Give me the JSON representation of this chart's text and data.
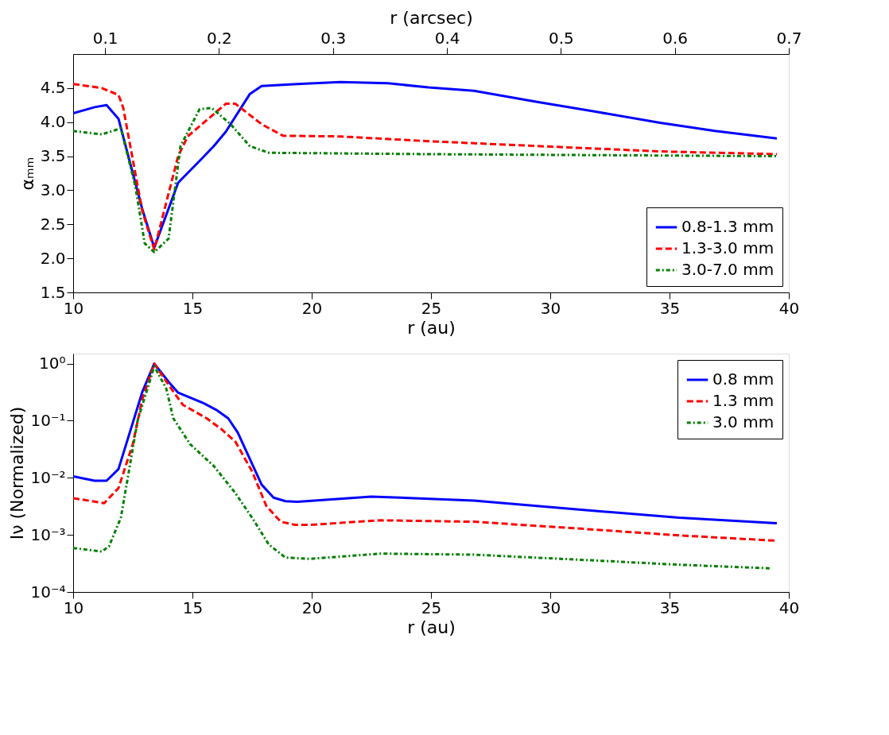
{
  "chart_data": [
    {
      "type": "line",
      "xlabel": "r (au)",
      "ylabel": "αₘₘ",
      "x2label": "r (arcsec)",
      "xlim": [
        10,
        40
      ],
      "xticks": [
        10,
        15,
        20,
        25,
        30,
        35,
        40
      ],
      "ylim": [
        1.5,
        5.0
      ],
      "yticks": [
        1.5,
        {
          "value": 2,
          "label": "2.0"
        },
        2.5,
        {
          "value": 3,
          "label": "3.0"
        },
        3.5,
        {
          "value": 4,
          "label": "4.0"
        },
        4.5
      ],
      "x2lim": [
        0.072,
        0.7
      ],
      "x2ticks": [
        0.1,
        0.2,
        0.3,
        0.4,
        0.5,
        0.6,
        0.7
      ],
      "grid": false,
      "legend": "bottom right",
      "marker": "none",
      "series": [
        {
          "name": "0.8-1.3 mm",
          "color": "#0000ff",
          "line_style": "solid",
          "x": [
            10,
            10.9,
            11.4,
            11.9,
            12.9,
            13.4,
            14.4,
            15.3,
            15.9,
            16.4,
            17.4,
            17.9,
            19.4,
            21.2,
            23.2,
            24.9,
            26.8,
            29.4,
            31.8,
            34.6,
            36.9,
            39.5
          ],
          "values": [
            4.13,
            4.22,
            4.25,
            4.05,
            2.72,
            2.16,
            3.11,
            3.43,
            3.65,
            3.86,
            4.41,
            4.53,
            4.56,
            4.59,
            4.57,
            4.51,
            4.46,
            4.3,
            4.16,
            3.99,
            3.87,
            3.76
          ]
        },
        {
          "name": "1.3-3.0 mm",
          "color": "#ff0000",
          "line_style": "dashed",
          "x": [
            10,
            11.2,
            11.9,
            12.1,
            12.9,
            13.4,
            14.4,
            14.8,
            15.6,
            16.4,
            16.8,
            17.9,
            18.8,
            21.2,
            24.9,
            29.4,
            34.6,
            39.5
          ],
          "values": [
            4.56,
            4.5,
            4.4,
            4.21,
            2.69,
            2.13,
            3.5,
            3.79,
            4.03,
            4.27,
            4.27,
            3.97,
            3.8,
            3.79,
            3.72,
            3.65,
            3.57,
            3.53
          ]
        },
        {
          "name": "3.0-7.0 mm",
          "color": "#008000",
          "line_style": "dotted",
          "x": [
            10,
            11.2,
            12.0,
            12.6,
            13.0,
            13.4,
            14.0,
            14.5,
            15.3,
            15.8,
            16.6,
            17.4,
            18.2,
            24.9,
            39.5
          ],
          "values": [
            3.87,
            3.82,
            3.91,
            3.07,
            2.22,
            2.09,
            2.29,
            3.65,
            4.19,
            4.21,
            3.97,
            3.65,
            3.55,
            3.53,
            3.5
          ]
        }
      ]
    },
    {
      "type": "line",
      "xlabel": "r (au)",
      "ylabel": "Iν (Normalized)",
      "xlim": [
        10,
        40
      ],
      "xticks": [
        10,
        15,
        20,
        25,
        30,
        35,
        40
      ],
      "ylim": [
        0.0001,
        1.5
      ],
      "log": "y",
      "yticks": [
        {
          "value": 0.0001,
          "label": "10⁻⁴"
        },
        {
          "value": 0.001,
          "label": "10⁻³"
        },
        {
          "value": 0.01,
          "label": "10⁻²"
        },
        {
          "value": 0.1,
          "label": "10⁻¹"
        },
        {
          "value": 1,
          "label": "10⁰"
        }
      ],
      "grid": false,
      "legend": "top right",
      "marker": "none",
      "series": [
        {
          "name": "0.8 mm",
          "color": "#0000ff",
          "line_style": "solid",
          "x": [
            10,
            10.9,
            11.4,
            11.9,
            12.9,
            13.4,
            14.0,
            14.4,
            15.5,
            16.0,
            16.5,
            16.9,
            17.9,
            18.4,
            18.9,
            19.4,
            22.5,
            26.8,
            31.1,
            35.4,
            39.5
          ],
          "values": [
            0.0106,
            0.0089,
            0.0089,
            0.0142,
            0.32,
            1.0,
            0.48,
            0.31,
            0.2,
            0.155,
            0.11,
            0.062,
            0.0076,
            0.0045,
            0.0039,
            0.0038,
            0.0047,
            0.004,
            0.0028,
            0.002,
            0.0016
          ]
        },
        {
          "name": "1.3 mm",
          "color": "#ff0000",
          "line_style": "dashed",
          "x": [
            10,
            11.3,
            11.9,
            12.5,
            12.9,
            13.4,
            14.1,
            14.6,
            15.6,
            16.2,
            16.8,
            17.5,
            18.1,
            18.7,
            19.3,
            19.9,
            22.9,
            26.8,
            31.1,
            35.4,
            39.5
          ],
          "values": [
            0.0044,
            0.0036,
            0.0066,
            0.039,
            0.24,
            1.0,
            0.37,
            0.19,
            0.11,
            0.072,
            0.043,
            0.013,
            0.0032,
            0.0017,
            0.0015,
            0.0015,
            0.0018,
            0.0017,
            0.0013,
            0.00098,
            0.00079
          ]
        },
        {
          "name": "3.0 mm",
          "color": "#008000",
          "line_style": "dotted",
          "x": [
            10,
            11.2,
            11.5,
            12.0,
            12.3,
            12.7,
            13.4,
            13.9,
            14.2,
            14.9,
            15.9,
            16.8,
            17.5,
            18.2,
            18.9,
            19.9,
            22.9,
            26.8,
            31.1,
            35.4,
            39.2
          ],
          "values": [
            0.00059,
            0.00051,
            0.00063,
            0.002,
            0.0106,
            0.1,
            0.89,
            0.37,
            0.11,
            0.039,
            0.016,
            0.0054,
            0.002,
            0.00068,
            0.0004,
            0.00038,
            0.00047,
            0.00045,
            0.00037,
            0.0003,
            0.00026
          ]
        }
      ]
    }
  ]
}
